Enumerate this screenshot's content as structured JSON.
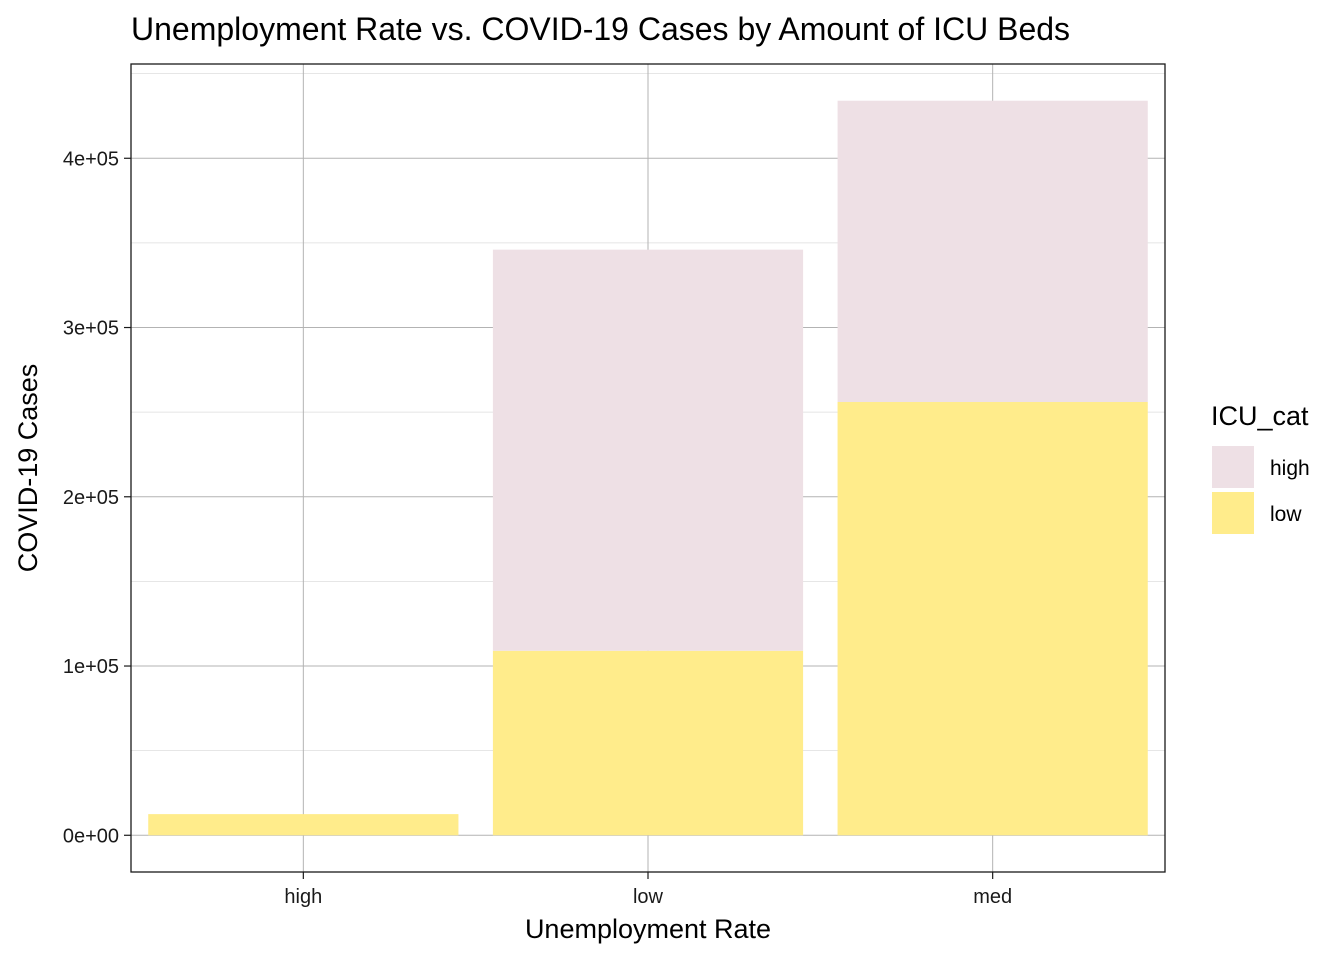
{
  "chart_data": {
    "type": "bar",
    "stacked": true,
    "title": "Unemployment Rate vs. COVID-19 Cases by Amount of ICU Beds",
    "xlabel": "Unemployment Rate",
    "ylabel": "COVID-19 Cases",
    "categories": [
      "high",
      "low",
      "med"
    ],
    "series": [
      {
        "name": "high",
        "color": "#EEE0E5",
        "values": [
          0,
          237000,
          178000
        ]
      },
      {
        "name": "low",
        "color": "#FFEC8B",
        "values": [
          12500,
          109000,
          256000
        ]
      }
    ],
    "yticks": [
      0,
      100000,
      200000,
      300000,
      400000
    ],
    "ytick_labels": [
      "0e+00",
      "1e+05",
      "2e+05",
      "3e+05",
      "4e+05"
    ],
    "ylim": [
      -21700,
      455700
    ],
    "grid": true,
    "legend": {
      "title": "ICU_cat",
      "position": "right",
      "items": [
        "high",
        "low"
      ]
    }
  }
}
